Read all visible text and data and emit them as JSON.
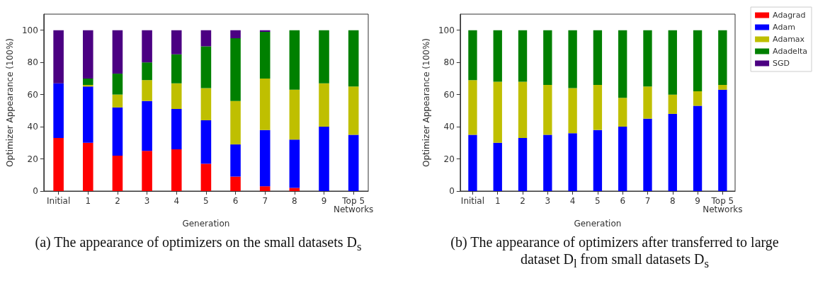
{
  "chart_data": [
    {
      "type": "bar",
      "stacked": true,
      "xlabel": "Generation",
      "ylabel": "Optimizer Appearance (100%)",
      "annotations": [
        "(a) The appearance of optimizers on the small datasets D$_{s}$"
      ],
      "categories": [
        "Initial",
        "1",
        "2",
        "3",
        "4",
        "5",
        "6",
        "7",
        "8",
        "9",
        "Top 5 Networks"
      ],
      "ylim": [
        0,
        110
      ],
      "yticks": [
        0,
        20,
        40,
        60,
        80,
        100
      ],
      "grid": false,
      "legend": false,
      "series": [
        {
          "color": "#ff0000",
          "values": [
            33,
            30,
            22,
            25,
            26,
            17,
            9,
            3,
            2,
            0,
            0
          ]
        },
        {
          "color": "#0000ff",
          "values": [
            34,
            35,
            30,
            31,
            25,
            27,
            20,
            35,
            30,
            40,
            35
          ]
        },
        {
          "color": "#bfbf00",
          "values": [
            0,
            1,
            8,
            13,
            16,
            20,
            27,
            32,
            31,
            27,
            30
          ]
        },
        {
          "color": "#008000",
          "values": [
            0,
            4,
            13,
            11,
            18,
            26,
            39,
            29,
            37,
            33,
            35
          ]
        },
        {
          "color": "#4b0082",
          "values": [
            33,
            30,
            27,
            20,
            15,
            10,
            5,
            1,
            0,
            0,
            0
          ]
        }
      ]
    },
    {
      "type": "bar",
      "stacked": true,
      "xlabel": "Generation",
      "ylabel": "Optimizer Appearance (100%)",
      "annotations": [
        "(b) The appearance of optimizers after transferred to large dataset D$_{l}$ from small datasets D$_{s}$"
      ],
      "categories": [
        "Initial",
        "1",
        "2",
        "3",
        "4",
        "5",
        "6",
        "7",
        "8",
        "9",
        "Top 5 Networks"
      ],
      "ylim": [
        0,
        110
      ],
      "yticks": [
        0,
        20,
        40,
        60,
        80,
        100
      ],
      "grid": false,
      "legend": "top right",
      "series": [
        {
          "name": "Adagrad",
          "color": "#ff0000",
          "values": [
            0,
            0,
            0,
            0,
            0,
            0,
            0,
            0,
            0,
            0,
            0
          ]
        },
        {
          "name": "Adam",
          "color": "#0000ff",
          "values": [
            35,
            30,
            33,
            35,
            36,
            38,
            40,
            45,
            48,
            53,
            63
          ]
        },
        {
          "name": "Adamax",
          "color": "#bfbf00",
          "values": [
            34,
            38,
            35,
            31,
            28,
            28,
            18,
            20,
            12,
            9,
            3
          ]
        },
        {
          "name": "Adadelta",
          "color": "#008000",
          "values": [
            31,
            32,
            32,
            34,
            36,
            34,
            42,
            35,
            40,
            38,
            34
          ]
        },
        {
          "name": "SGD",
          "color": "#4b0082",
          "values": [
            0,
            0,
            0,
            0,
            0,
            0,
            0,
            0,
            0,
            0,
            0
          ]
        }
      ]
    }
  ]
}
